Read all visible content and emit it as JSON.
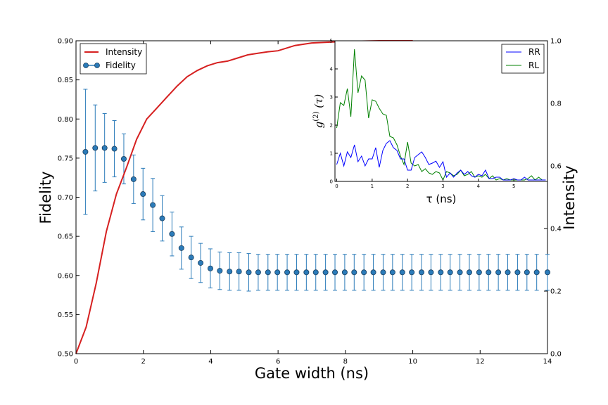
{
  "chart_data": [
    {
      "type": "line",
      "role": "main",
      "xlabel": "Gate width (ns)",
      "ylabel_left": "Fidelity",
      "ylabel_right": "Intensity",
      "xlim": [
        0,
        14
      ],
      "ylim_left": [
        0.5,
        0.9
      ],
      "ylim_right": [
        0.0,
        1.0
      ],
      "x_ticks": [
        "0",
        "2",
        "4",
        "6",
        "8",
        "10",
        "12",
        "14"
      ],
      "y_ticks_left": [
        "0.50",
        "0.55",
        "0.60",
        "0.65",
        "0.70",
        "0.75",
        "0.80",
        "0.85",
        "0.90"
      ],
      "y_ticks_right": [
        "0.0",
        "0.2",
        "0.4",
        "0.6",
        "0.8",
        "1.0"
      ],
      "legend_position": "top-left",
      "series": [
        {
          "name": "Intensity",
          "axis": "right",
          "color": "#d62020",
          "style": "line",
          "x": [
            0.0,
            0.3,
            0.6,
            0.9,
            1.2,
            1.5,
            1.8,
            2.1,
            2.4,
            2.7,
            3.0,
            3.3,
            3.6,
            3.9,
            4.2,
            4.5,
            4.8,
            5.1,
            5.4,
            5.7,
            6.0,
            6.5,
            7.0,
            8.0,
            9.0,
            10.0
          ],
          "y": [
            0.0,
            0.085,
            0.225,
            0.39,
            0.51,
            0.595,
            0.685,
            0.75,
            0.785,
            0.82,
            0.855,
            0.885,
            0.905,
            0.92,
            0.93,
            0.935,
            0.945,
            0.955,
            0.96,
            0.965,
            0.968,
            0.985,
            0.993,
            0.998,
            1.0,
            1.0
          ]
        },
        {
          "name": "Fidelity",
          "axis": "left",
          "color": "#2b7bb9",
          "style": "errorbar-markers",
          "x": [
            0.28,
            0.57,
            0.85,
            1.14,
            1.42,
            1.71,
            1.99,
            2.28,
            2.56,
            2.85,
            3.13,
            3.42,
            3.7,
            3.99,
            4.27,
            4.56,
            4.84,
            5.13,
            5.41,
            5.7,
            5.98,
            6.27,
            6.55,
            6.84,
            7.12,
            7.41,
            7.69,
            7.98,
            8.26,
            8.55,
            8.83,
            9.12,
            9.4,
            9.69,
            9.97,
            10.26,
            10.54,
            10.83,
            11.11,
            11.4,
            11.68,
            11.97,
            12.25,
            12.54,
            12.82,
            13.11,
            13.39,
            13.68,
            14.0
          ],
          "y": [
            0.758,
            0.763,
            0.763,
            0.762,
            0.749,
            0.723,
            0.704,
            0.69,
            0.673,
            0.653,
            0.635,
            0.623,
            0.616,
            0.609,
            0.606,
            0.605,
            0.605,
            0.604,
            0.604,
            0.604,
            0.604,
            0.604,
            0.604,
            0.604,
            0.604,
            0.604,
            0.604,
            0.604,
            0.604,
            0.604,
            0.604,
            0.604,
            0.604,
            0.604,
            0.604,
            0.604,
            0.604,
            0.604,
            0.604,
            0.604,
            0.604,
            0.604,
            0.604,
            0.604,
            0.604,
            0.604,
            0.604,
            0.604,
            0.604
          ],
          "yerr": [
            0.08,
            0.055,
            0.044,
            0.036,
            0.032,
            0.031,
            0.033,
            0.034,
            0.029,
            0.028,
            0.027,
            0.027,
            0.025,
            0.025,
            0.024,
            0.024,
            0.024,
            0.024,
            0.023,
            0.023,
            0.023,
            0.023,
            0.023,
            0.023,
            0.023,
            0.023,
            0.023,
            0.023,
            0.023,
            0.023,
            0.023,
            0.023,
            0.023,
            0.023,
            0.023,
            0.023,
            0.023,
            0.023,
            0.023,
            0.023,
            0.023,
            0.023,
            0.023,
            0.023,
            0.023,
            0.023,
            0.023,
            0.023,
            0.023
          ]
        }
      ]
    },
    {
      "type": "line",
      "role": "inset",
      "xlabel": "τ (ns)",
      "ylabel": "g(2) (τ)",
      "ylabel_parts": {
        "base": "g",
        "sup": "(2)",
        "arg": " (τ)"
      },
      "xlim": [
        -0.05,
        5.95
      ],
      "ylim": [
        0,
        5
      ],
      "x_ticks": [
        "0",
        "1",
        "2",
        "3",
        "4",
        "5"
      ],
      "y_ticks": [
        "0",
        "1",
        "2",
        "3",
        "4",
        "5"
      ],
      "legend_position": "top-right",
      "series": [
        {
          "name": "RR",
          "color": "#0000ff",
          "x": [
            0.0,
            0.1,
            0.2,
            0.3,
            0.4,
            0.5,
            0.6,
            0.7,
            0.8,
            0.9,
            1.0,
            1.1,
            1.2,
            1.3,
            1.4,
            1.5,
            1.6,
            1.7,
            1.8,
            1.9,
            2.0,
            2.1,
            2.2,
            2.3,
            2.4,
            2.5,
            2.6,
            2.7,
            2.8,
            2.9,
            3.0,
            3.1,
            3.2,
            3.3,
            3.4,
            3.5,
            3.6,
            3.7,
            3.8,
            3.9,
            4.0,
            4.1,
            4.2,
            4.3,
            4.4,
            4.5,
            4.6,
            4.7,
            4.8,
            4.9,
            5.0,
            5.1,
            5.2,
            5.3,
            5.4,
            5.5,
            5.6,
            5.7,
            5.8,
            5.9
          ],
          "y": [
            0.6,
            1.0,
            0.55,
            1.05,
            0.85,
            1.3,
            0.7,
            0.9,
            0.55,
            0.8,
            0.8,
            1.2,
            0.5,
            1.1,
            1.35,
            1.45,
            1.2,
            1.1,
            0.8,
            0.8,
            0.4,
            0.4,
            0.85,
            0.95,
            1.05,
            0.85,
            0.6,
            0.65,
            0.72,
            0.5,
            0.7,
            0.15,
            0.3,
            0.15,
            0.3,
            0.4,
            0.25,
            0.35,
            0.2,
            0.15,
            0.25,
            0.2,
            0.4,
            0.1,
            0.1,
            0.15,
            0.15,
            0.05,
            0.05,
            0.05,
            0.1,
            0.05,
            0.05,
            0.15,
            0.05,
            0.05,
            0.05,
            0.05,
            0.05,
            0.05
          ]
        },
        {
          "name": "RL",
          "color": "#008000",
          "x": [
            0.0,
            0.1,
            0.2,
            0.3,
            0.4,
            0.5,
            0.6,
            0.7,
            0.8,
            0.9,
            1.0,
            1.1,
            1.2,
            1.3,
            1.4,
            1.5,
            1.6,
            1.7,
            1.8,
            1.9,
            2.0,
            2.1,
            2.2,
            2.3,
            2.4,
            2.5,
            2.6,
            2.7,
            2.8,
            2.9,
            3.0,
            3.1,
            3.2,
            3.3,
            3.4,
            3.5,
            3.6,
            3.7,
            3.8,
            3.9,
            4.0,
            4.1,
            4.2,
            4.3,
            4.4,
            4.5,
            4.6,
            4.7,
            4.8,
            4.9,
            5.0,
            5.1,
            5.2,
            5.3,
            5.4,
            5.5,
            5.6,
            5.7,
            5.8,
            5.9
          ],
          "y": [
            1.9,
            2.8,
            2.7,
            3.3,
            2.3,
            4.7,
            3.15,
            3.75,
            3.6,
            2.25,
            2.9,
            2.85,
            2.6,
            2.4,
            2.35,
            1.6,
            1.55,
            1.3,
            0.9,
            0.6,
            1.4,
            0.65,
            0.55,
            0.6,
            0.35,
            0.45,
            0.3,
            0.25,
            0.35,
            0.3,
            0.05,
            0.35,
            0.3,
            0.2,
            0.25,
            0.4,
            0.2,
            0.25,
            0.35,
            0.15,
            0.2,
            0.15,
            0.25,
            0.1,
            0.2,
            0.05,
            0.1,
            0.05,
            0.1,
            0.05,
            0.05,
            0.05,
            0.05,
            0.05,
            0.1,
            0.2,
            0.05,
            0.15,
            0.05,
            0.05
          ]
        }
      ]
    }
  ]
}
